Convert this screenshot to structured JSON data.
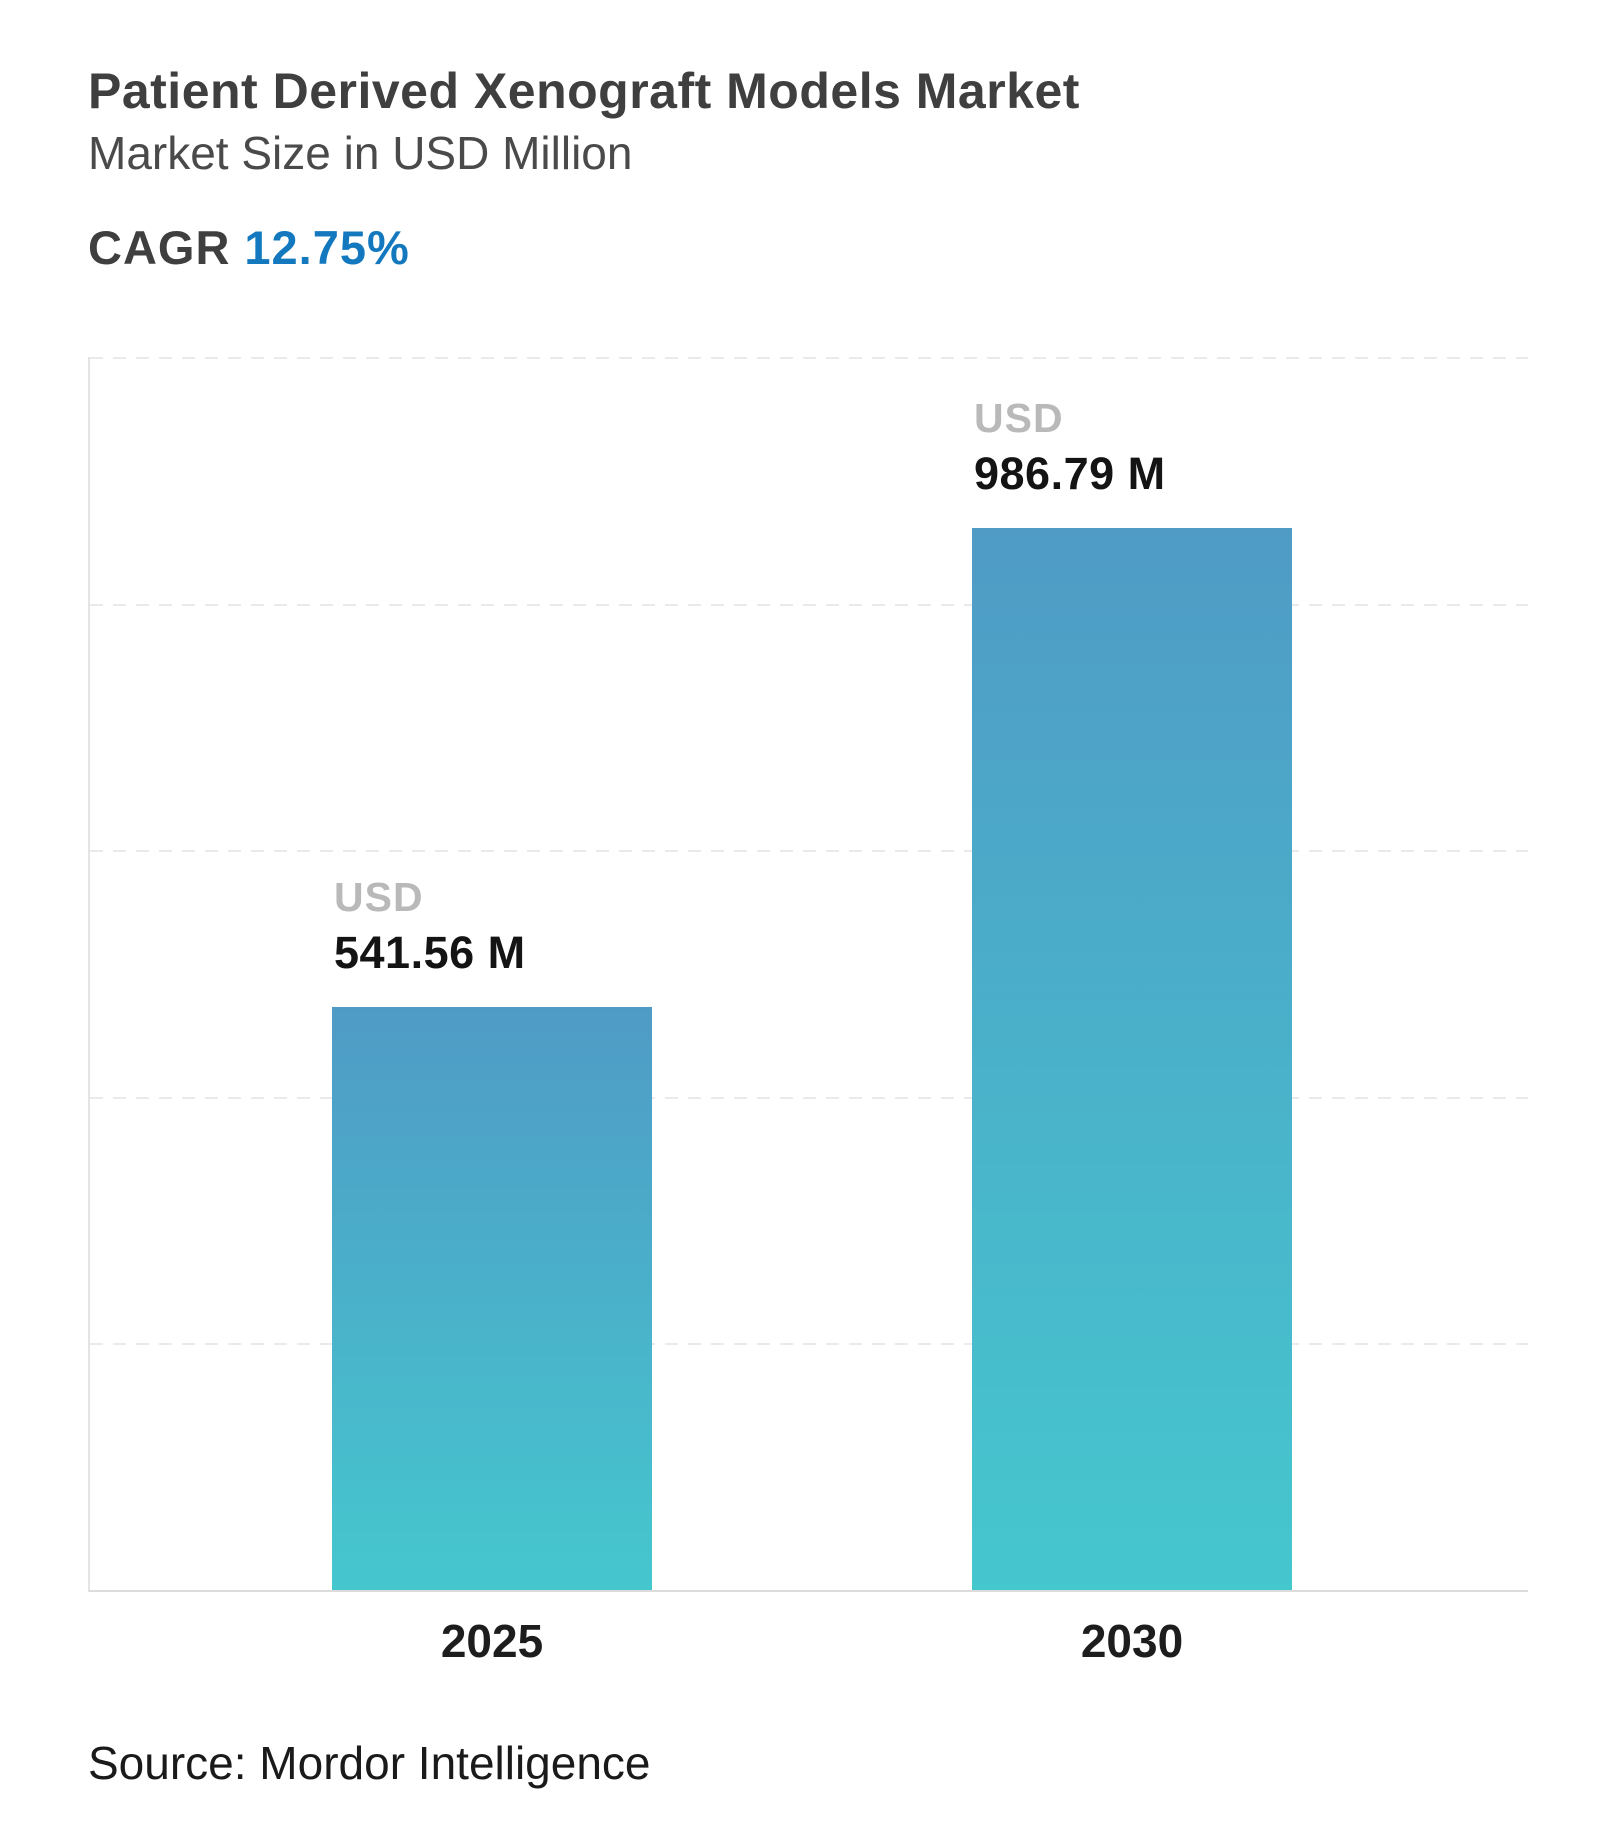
{
  "header": {
    "title": "Patient Derived Xenograft Models Market",
    "subtitle": "Market Size in USD Million",
    "cagr_label": "CAGR",
    "cagr_value": "12.75%"
  },
  "chart_data": {
    "type": "bar",
    "title": "Patient Derived Xenograft Models Market",
    "subtitle": "Market Size in USD Million",
    "cagr": "12.75%",
    "categories": [
      "2025",
      "2030"
    ],
    "values": [
      541.56,
      986.79
    ],
    "bar_labels": [
      {
        "currency": "USD",
        "value": "541.56 M"
      },
      {
        "currency": "USD",
        "value": "986.79 M"
      }
    ],
    "unit": "USD Million",
    "xlabel": "",
    "ylabel": "Market Size in USD Million",
    "ylim": [
      0,
      1148
    ],
    "grid": "horizontal-dashed",
    "legend": "none",
    "colors": {
      "bar_gradient_top": "#4f9bc6",
      "bar_gradient_bottom": "#45c7ce",
      "cagr_accent": "#1478be",
      "currency_label": "#b9b9b9",
      "value_label": "#141414"
    }
  },
  "footer": {
    "source": "Source: Mordor Intelligence"
  }
}
